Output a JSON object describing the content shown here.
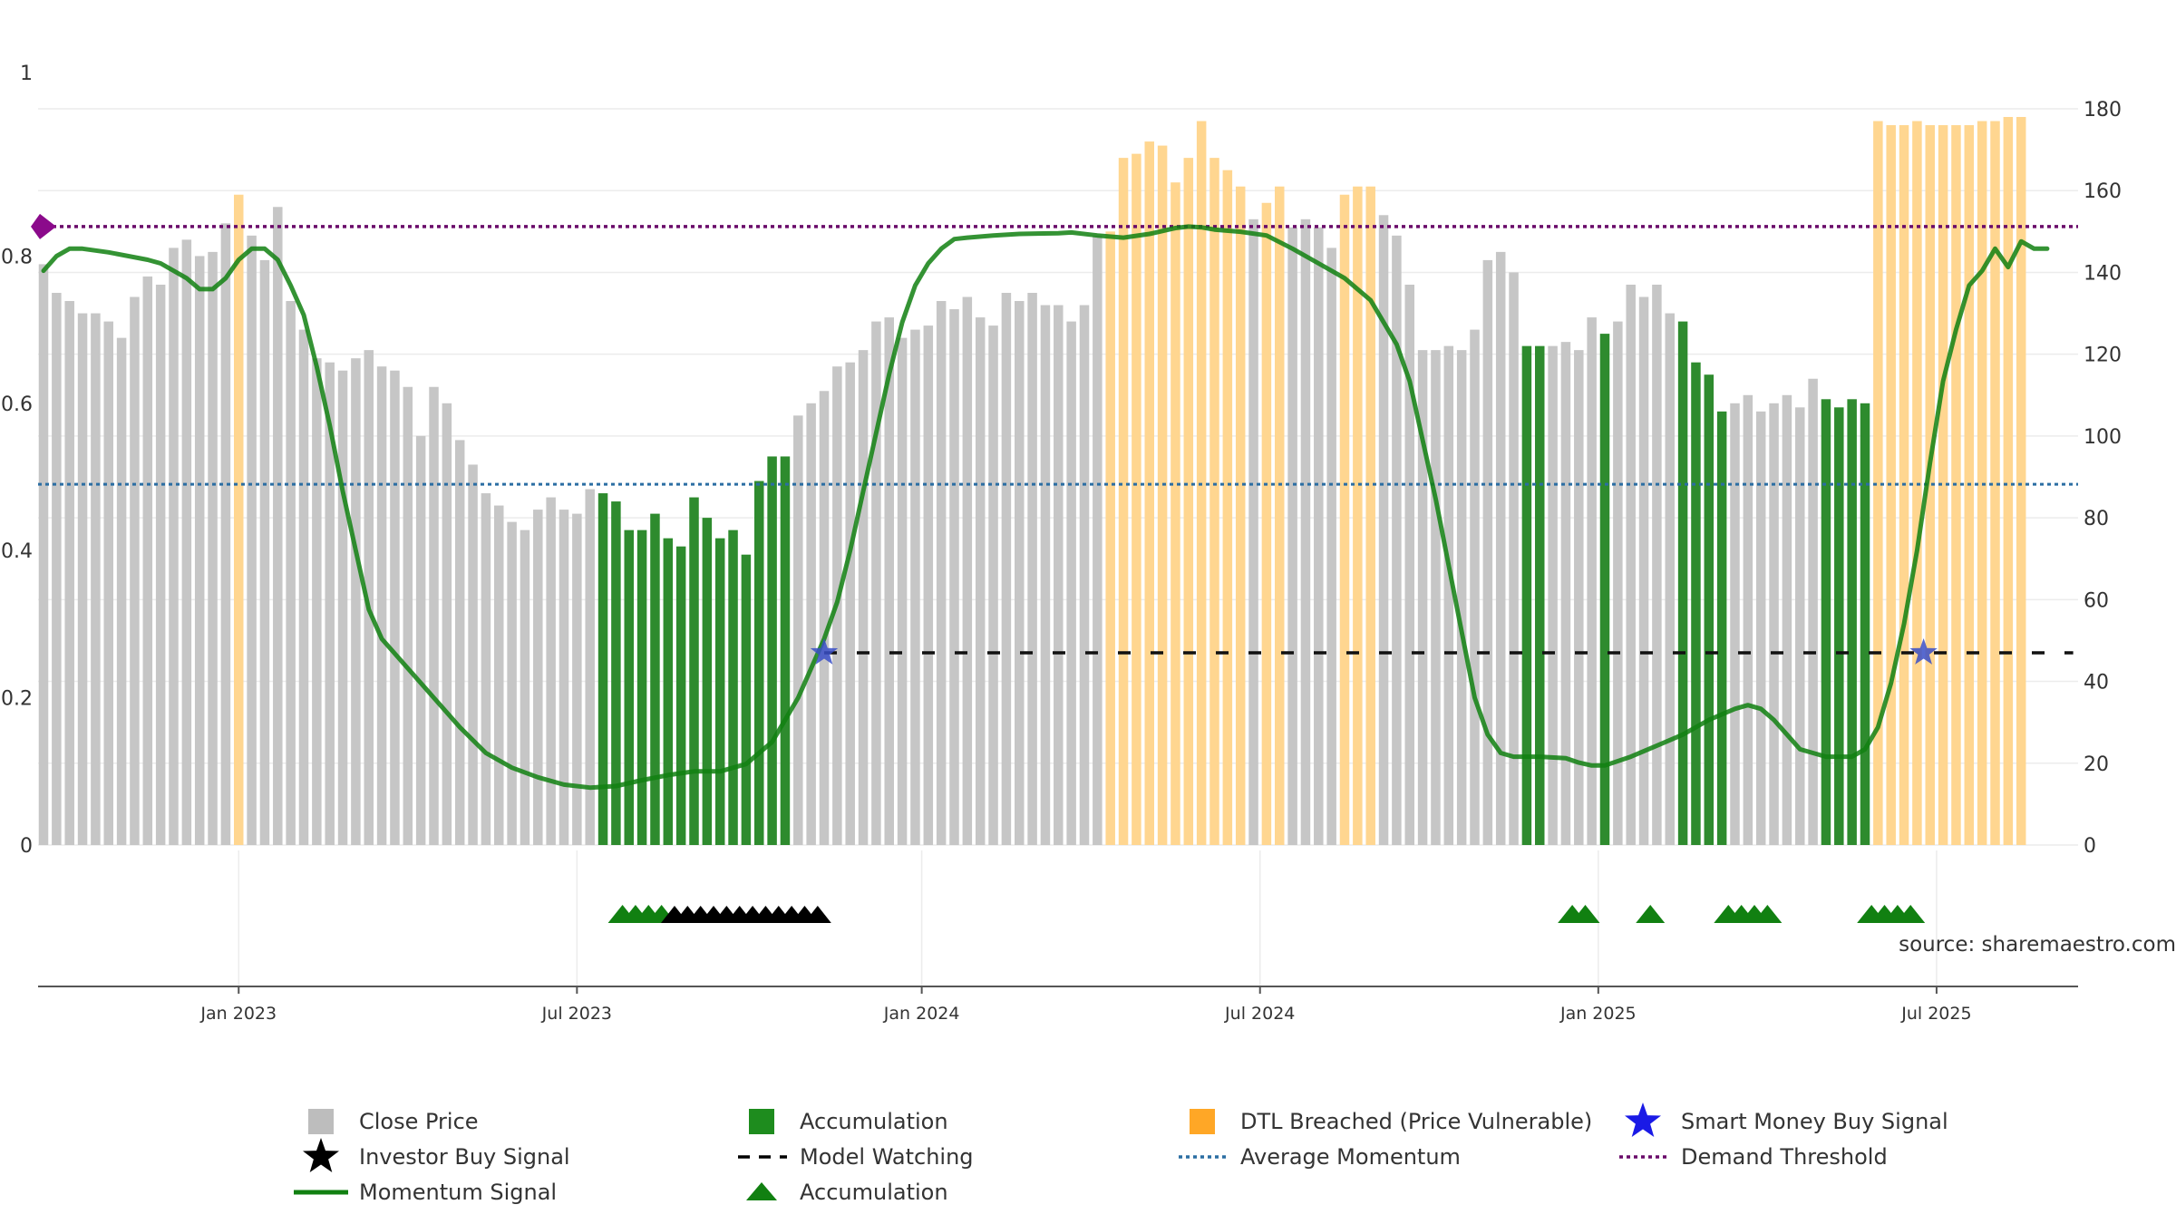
{
  "chart_data": {
    "type": "bar",
    "left_axis": {
      "min": 0,
      "max": 1,
      "ticks": [
        "0",
        "0.2",
        "0.4",
        "0.6",
        "0.8",
        "1"
      ]
    },
    "right_axis": {
      "min": 0,
      "max": 180,
      "ticks": [
        "0",
        "20",
        "40",
        "60",
        "80",
        "100",
        "120",
        "140",
        "160",
        "180"
      ]
    },
    "x_ticks": [
      {
        "label": "Jan 2023",
        "index": 15
      },
      {
        "label": "Jul 2023",
        "index": 41
      },
      {
        "label": "Jan 2024",
        "index": 67.5
      },
      {
        "label": "Jul 2024",
        "index": 93.5
      },
      {
        "label": "Jan 2025",
        "index": 119.5
      },
      {
        "label": "Jul 2025",
        "index": 145.5
      }
    ],
    "source_note": "source: sharemaestro.com",
    "average_momentum": 0.49,
    "demand_threshold": 0.84,
    "model_watching_price": 47,
    "model_watching_range": [
      60,
      156
    ],
    "smart_money_signals": [
      {
        "index": 60,
        "price": 47
      },
      {
        "index": 144.5,
        "price": 47
      }
    ],
    "close_price": [
      142,
      135,
      133,
      130,
      130,
      128,
      124,
      134,
      139,
      137,
      146,
      148,
      144,
      145,
      152,
      159,
      149,
      143,
      156,
      133,
      126,
      119,
      118,
      116,
      119,
      121,
      117,
      116,
      112,
      100,
      112,
      108,
      99,
      93,
      86,
      83,
      79,
      77,
      82,
      85,
      82,
      81,
      87,
      86,
      84,
      77,
      77,
      81,
      75,
      73,
      85,
      80,
      75,
      77,
      71,
      89,
      95,
      95,
      105,
      108,
      111,
      117,
      118,
      121,
      128,
      129,
      124,
      126,
      127,
      133,
      131,
      134,
      129,
      127,
      135,
      133,
      135,
      132,
      132,
      128,
      132,
      149,
      150,
      168,
      169,
      172,
      171,
      162,
      168,
      177,
      168,
      165,
      161,
      153,
      157,
      161,
      151,
      153,
      151,
      146,
      159,
      161,
      161,
      154,
      149,
      137,
      121,
      121,
      122,
      121,
      126,
      143,
      145,
      140,
      122,
      122,
      122,
      123,
      121,
      129,
      125,
      128,
      137,
      134,
      137,
      130,
      128,
      118,
      115,
      106,
      108,
      110,
      106,
      108,
      110,
      107,
      114,
      109,
      107,
      109,
      108,
      177,
      176,
      176,
      177,
      176,
      176,
      176,
      176,
      177,
      177,
      178,
      178
    ],
    "bar_category": [
      "g",
      "g",
      "g",
      "g",
      "g",
      "g",
      "g",
      "g",
      "g",
      "g",
      "g",
      "g",
      "g",
      "g",
      "g",
      "o",
      "g",
      "g",
      "g",
      "g",
      "g",
      "g",
      "g",
      "g",
      "g",
      "g",
      "g",
      "g",
      "g",
      "g",
      "g",
      "g",
      "g",
      "g",
      "g",
      "g",
      "g",
      "g",
      "g",
      "g",
      "g",
      "g",
      "g",
      "a",
      "a",
      "a",
      "a",
      "a",
      "a",
      "a",
      "a",
      "a",
      "a",
      "a",
      "a",
      "a",
      "a",
      "a",
      "g",
      "g",
      "g",
      "g",
      "g",
      "g",
      "g",
      "g",
      "g",
      "g",
      "g",
      "g",
      "g",
      "g",
      "g",
      "g",
      "g",
      "g",
      "g",
      "g",
      "g",
      "g",
      "g",
      "g",
      "o",
      "o",
      "o",
      "o",
      "o",
      "o",
      "o",
      "o",
      "o",
      "o",
      "o",
      "g",
      "o",
      "o",
      "g",
      "g",
      "g",
      "g",
      "o",
      "o",
      "o",
      "g",
      "g",
      "g",
      "g",
      "g",
      "g",
      "g",
      "g",
      "g",
      "g",
      "g",
      "a",
      "a",
      "g",
      "g",
      "g",
      "g",
      "a",
      "g",
      "g",
      "g",
      "g",
      "g",
      "a",
      "a",
      "a",
      "a",
      "g",
      "g",
      "g",
      "g",
      "g",
      "g",
      "g",
      "a",
      "a",
      "a",
      "a",
      "o",
      "o",
      "o",
      "o",
      "o",
      "o",
      "o",
      "o",
      "o",
      "o",
      "o",
      "o"
    ],
    "momentum": [
      [
        0,
        0.78
      ],
      [
        1,
        0.8
      ],
      [
        2,
        0.81
      ],
      [
        3,
        0.81
      ],
      [
        5,
        0.805
      ],
      [
        8,
        0.795
      ],
      [
        9,
        0.79
      ],
      [
        11,
        0.77
      ],
      [
        12,
        0.755
      ],
      [
        13,
        0.755
      ],
      [
        14,
        0.77
      ],
      [
        15,
        0.795
      ],
      [
        16,
        0.81
      ],
      [
        17,
        0.81
      ],
      [
        18,
        0.795
      ],
      [
        19,
        0.76
      ],
      [
        20,
        0.72
      ],
      [
        21,
        0.65
      ],
      [
        22,
        0.57
      ],
      [
        23,
        0.48
      ],
      [
        24,
        0.4
      ],
      [
        25,
        0.32
      ],
      [
        26,
        0.28
      ],
      [
        28,
        0.24
      ],
      [
        30,
        0.2
      ],
      [
        32,
        0.16
      ],
      [
        34,
        0.125
      ],
      [
        36,
        0.105
      ],
      [
        38,
        0.092
      ],
      [
        40,
        0.082
      ],
      [
        42,
        0.078
      ],
      [
        44,
        0.08
      ],
      [
        46,
        0.088
      ],
      [
        48,
        0.095
      ],
      [
        50,
        0.1
      ],
      [
        52,
        0.1
      ],
      [
        54,
        0.11
      ],
      [
        56,
        0.14
      ],
      [
        58,
        0.2
      ],
      [
        60,
        0.28
      ],
      [
        61,
        0.33
      ],
      [
        62,
        0.4
      ],
      [
        63,
        0.48
      ],
      [
        64,
        0.56
      ],
      [
        65,
        0.64
      ],
      [
        66,
        0.71
      ],
      [
        67,
        0.76
      ],
      [
        68,
        0.79
      ],
      [
        69,
        0.81
      ],
      [
        70,
        0.823
      ],
      [
        71,
        0.825
      ],
      [
        73,
        0.828
      ],
      [
        75,
        0.83
      ],
      [
        78,
        0.831
      ],
      [
        79,
        0.832
      ],
      [
        81,
        0.828
      ],
      [
        83,
        0.825
      ],
      [
        85,
        0.83
      ],
      [
        87,
        0.838
      ],
      [
        88,
        0.84
      ],
      [
        89,
        0.839
      ],
      [
        90,
        0.836
      ],
      [
        92,
        0.833
      ],
      [
        94,
        0.828
      ],
      [
        96,
        0.81
      ],
      [
        98,
        0.79
      ],
      [
        100,
        0.77
      ],
      [
        102,
        0.74
      ],
      [
        104,
        0.68
      ],
      [
        105,
        0.63
      ],
      [
        106,
        0.55
      ],
      [
        107,
        0.47
      ],
      [
        108,
        0.38
      ],
      [
        109,
        0.29
      ],
      [
        110,
        0.2
      ],
      [
        111,
        0.15
      ],
      [
        112,
        0.125
      ],
      [
        113,
        0.12
      ],
      [
        115,
        0.12
      ],
      [
        117,
        0.118
      ],
      [
        118,
        0.112
      ],
      [
        119,
        0.108
      ],
      [
        120,
        0.108
      ],
      [
        122,
        0.12
      ],
      [
        124,
        0.135
      ],
      [
        126,
        0.15
      ],
      [
        128,
        0.17
      ],
      [
        130,
        0.185
      ],
      [
        131,
        0.19
      ],
      [
        132,
        0.185
      ],
      [
        133,
        0.17
      ],
      [
        134,
        0.15
      ],
      [
        135,
        0.13
      ],
      [
        137,
        0.12
      ],
      [
        139,
        0.12
      ],
      [
        140,
        0.13
      ],
      [
        141,
        0.16
      ],
      [
        142,
        0.22
      ],
      [
        143,
        0.3
      ],
      [
        144,
        0.4
      ],
      [
        145,
        0.52
      ],
      [
        146,
        0.63
      ],
      [
        147,
        0.7
      ],
      [
        148,
        0.76
      ],
      [
        149,
        0.78
      ],
      [
        150,
        0.81
      ],
      [
        151,
        0.785
      ],
      [
        152,
        0.82
      ],
      [
        153,
        0.81
      ],
      [
        154,
        0.81
      ]
    ],
    "accumulation_triangles": [
      44.5,
      45.5,
      46.5,
      47.5,
      117.5,
      118.5,
      123.5,
      129.5,
      130.5,
      131.5,
      132.5,
      140.5,
      141.5,
      142.5,
      143.5
    ],
    "investor_buy_stars": [
      48.5,
      49.5,
      50.5,
      51.5,
      52.5,
      53.5,
      54.5,
      55.5,
      56.5,
      57.5,
      58.5,
      59.5
    ],
    "legend": [
      {
        "label": "Close Price",
        "marker": "gray-square",
        "color": "#bdbdbd"
      },
      {
        "label": "Accumulation",
        "marker": "green-square",
        "color": "#1e8c1e"
      },
      {
        "label": "DTL Breached (Price Vulnerable)",
        "marker": "orange-square",
        "color": "#ffa726"
      },
      {
        "label": "Smart Money Buy Signal",
        "marker": "blue-star",
        "color": "#1a1ae6"
      },
      {
        "label": "Investor Buy Signal",
        "marker": "black-star",
        "color": "#000000"
      },
      {
        "label": "Model Watching",
        "marker": "black-dash",
        "color": "#000000"
      },
      {
        "label": "Average Momentum",
        "marker": "blue-dotted",
        "color": "#2b6ea3"
      },
      {
        "label": "Demand Threshold",
        "marker": "purple-dotted",
        "color": "#6a0a6a"
      },
      {
        "label": "Momentum Signal",
        "marker": "green-line",
        "color": "#118011"
      },
      {
        "label": "Accumulation",
        "marker": "green-triangle",
        "color": "#118011"
      }
    ],
    "colors": {
      "gray": "#c6c6c6",
      "accumulation": "#2e8b2e",
      "dtl": "#ffd690",
      "momentum": "#118011",
      "average": "#2b6ea3",
      "threshold": "#6a0a6a",
      "smart_money": "#3a4fc7",
      "model_watching": "#111111"
    }
  }
}
